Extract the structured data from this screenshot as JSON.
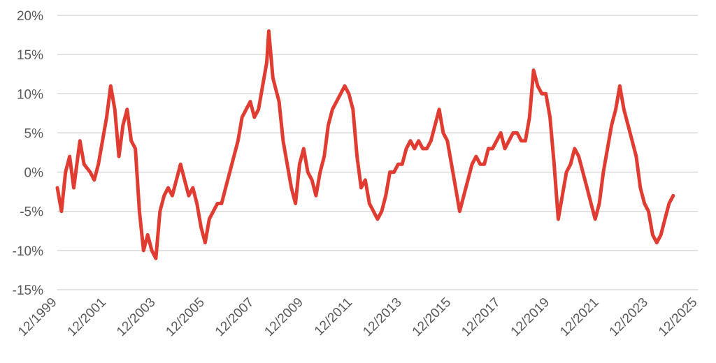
{
  "chart_data": {
    "type": "line",
    "title": "",
    "xlabel": "",
    "ylabel": "",
    "ylim": [
      -15,
      20
    ],
    "y_ticks": [
      {
        "value": 20,
        "label": "20%"
      },
      {
        "value": 15,
        "label": "15%"
      },
      {
        "value": 10,
        "label": "10%"
      },
      {
        "value": 5,
        "label": "5%"
      },
      {
        "value": 0,
        "label": "0%"
      },
      {
        "value": -5,
        "label": "-5%"
      },
      {
        "value": -10,
        "label": "-10%"
      },
      {
        "value": -15,
        "label": "-15%"
      }
    ],
    "x_range": [
      "12/1999",
      "12/2025"
    ],
    "x_ticks": [
      "12/1999",
      "12/2001",
      "12/2003",
      "12/2005",
      "12/2007",
      "12/2009",
      "12/2011",
      "12/2013",
      "12/2015",
      "12/2017",
      "12/2019",
      "12/2021",
      "12/2023",
      "12/2025"
    ],
    "grid": "horizontal",
    "series": [
      {
        "color": "#e03c31",
        "points": [
          [
            "12/1999",
            -2
          ],
          [
            "02/2000",
            -5
          ],
          [
            "04/2000",
            0
          ],
          [
            "06/2000",
            2
          ],
          [
            "08/2000",
            -2
          ],
          [
            "11/2000",
            4
          ],
          [
            "01/2001",
            1
          ],
          [
            "04/2001",
            0
          ],
          [
            "06/2001",
            -1
          ],
          [
            "08/2001",
            1
          ],
          [
            "10/2001",
            4
          ],
          [
            "12/2001",
            7
          ],
          [
            "02/2002",
            11
          ],
          [
            "04/2002",
            8
          ],
          [
            "06/2002",
            2
          ],
          [
            "08/2002",
            6
          ],
          [
            "10/2002",
            8
          ],
          [
            "12/2002",
            4
          ],
          [
            "02/2003",
            3
          ],
          [
            "04/2003",
            -5
          ],
          [
            "06/2003",
            -10
          ],
          [
            "08/2003",
            -8
          ],
          [
            "10/2003",
            -10
          ],
          [
            "12/2003",
            -11
          ],
          [
            "02/2004",
            -5
          ],
          [
            "04/2004",
            -3
          ],
          [
            "06/2004",
            -2
          ],
          [
            "08/2004",
            -3
          ],
          [
            "10/2004",
            -1
          ],
          [
            "12/2004",
            1
          ],
          [
            "02/2005",
            -1
          ],
          [
            "04/2005",
            -3
          ],
          [
            "06/2005",
            -2
          ],
          [
            "08/2005",
            -4
          ],
          [
            "10/2005",
            -7
          ],
          [
            "12/2005",
            -9
          ],
          [
            "02/2006",
            -6
          ],
          [
            "04/2006",
            -5
          ],
          [
            "06/2006",
            -4
          ],
          [
            "08/2006",
            -4
          ],
          [
            "10/2006",
            -2
          ],
          [
            "12/2006",
            0
          ],
          [
            "02/2007",
            2
          ],
          [
            "04/2007",
            4
          ],
          [
            "06/2007",
            7
          ],
          [
            "08/2007",
            8
          ],
          [
            "10/2007",
            9
          ],
          [
            "12/2007",
            7
          ],
          [
            "02/2008",
            8
          ],
          [
            "04/2008",
            11
          ],
          [
            "06/2008",
            14
          ],
          [
            "07/2008",
            18
          ],
          [
            "09/2008",
            12
          ],
          [
            "12/2008",
            9
          ],
          [
            "02/2009",
            4
          ],
          [
            "04/2009",
            1
          ],
          [
            "06/2009",
            -2
          ],
          [
            "08/2009",
            -4
          ],
          [
            "10/2009",
            1
          ],
          [
            "12/2009",
            3
          ],
          [
            "02/2010",
            0
          ],
          [
            "04/2010",
            -1
          ],
          [
            "06/2010",
            -3
          ],
          [
            "08/2010",
            0
          ],
          [
            "10/2010",
            2
          ],
          [
            "12/2010",
            6
          ],
          [
            "02/2011",
            8
          ],
          [
            "04/2011",
            9
          ],
          [
            "06/2011",
            10
          ],
          [
            "08/2011",
            11
          ],
          [
            "10/2011",
            10
          ],
          [
            "12/2011",
            8
          ],
          [
            "02/2012",
            2
          ],
          [
            "04/2012",
            -2
          ],
          [
            "06/2012",
            -1
          ],
          [
            "08/2012",
            -4
          ],
          [
            "10/2012",
            -5
          ],
          [
            "12/2012",
            -6
          ],
          [
            "02/2013",
            -5
          ],
          [
            "04/2013",
            -3
          ],
          [
            "06/2013",
            0
          ],
          [
            "08/2013",
            0
          ],
          [
            "10/2013",
            1
          ],
          [
            "12/2013",
            1
          ],
          [
            "02/2014",
            3
          ],
          [
            "04/2014",
            4
          ],
          [
            "06/2014",
            3
          ],
          [
            "08/2014",
            4
          ],
          [
            "10/2014",
            3
          ],
          [
            "12/2014",
            3
          ],
          [
            "02/2015",
            4
          ],
          [
            "04/2015",
            6
          ],
          [
            "06/2015",
            8
          ],
          [
            "08/2015",
            5
          ],
          [
            "10/2015",
            4
          ],
          [
            "12/2015",
            1
          ],
          [
            "02/2016",
            -2
          ],
          [
            "04/2016",
            -5
          ],
          [
            "06/2016",
            -3
          ],
          [
            "08/2016",
            -1
          ],
          [
            "10/2016",
            1
          ],
          [
            "12/2016",
            2
          ],
          [
            "02/2017",
            1
          ],
          [
            "04/2017",
            1
          ],
          [
            "06/2017",
            3
          ],
          [
            "08/2017",
            3
          ],
          [
            "10/2017",
            4
          ],
          [
            "12/2017",
            5
          ],
          [
            "02/2018",
            3
          ],
          [
            "04/2018",
            4
          ],
          [
            "06/2018",
            5
          ],
          [
            "08/2018",
            5
          ],
          [
            "10/2018",
            4
          ],
          [
            "12/2018",
            4
          ],
          [
            "02/2019",
            7
          ],
          [
            "04/2019",
            13
          ],
          [
            "06/2019",
            11
          ],
          [
            "08/2019",
            10
          ],
          [
            "10/2019",
            10
          ],
          [
            "12/2019",
            7
          ],
          [
            "02/2020",
            1
          ],
          [
            "04/2020",
            -6
          ],
          [
            "06/2020",
            -3
          ],
          [
            "08/2020",
            0
          ],
          [
            "10/2020",
            1
          ],
          [
            "12/2020",
            3
          ],
          [
            "02/2021",
            2
          ],
          [
            "04/2021",
            0
          ],
          [
            "06/2021",
            -2
          ],
          [
            "08/2021",
            -4
          ],
          [
            "10/2021",
            -6
          ],
          [
            "12/2021",
            -4
          ],
          [
            "02/2022",
            0
          ],
          [
            "04/2022",
            3
          ],
          [
            "06/2022",
            6
          ],
          [
            "08/2022",
            8
          ],
          [
            "10/2022",
            11
          ],
          [
            "12/2022",
            8
          ],
          [
            "02/2023",
            6
          ],
          [
            "04/2023",
            4
          ],
          [
            "06/2023",
            2
          ],
          [
            "08/2023",
            -2
          ],
          [
            "10/2023",
            -4
          ],
          [
            "12/2023",
            -5
          ],
          [
            "02/2024",
            -8
          ],
          [
            "04/2024",
            -9
          ],
          [
            "06/2024",
            -8
          ],
          [
            "08/2024",
            -6
          ],
          [
            "10/2024",
            -4
          ],
          [
            "12/2024",
            -3
          ]
        ]
      }
    ]
  }
}
